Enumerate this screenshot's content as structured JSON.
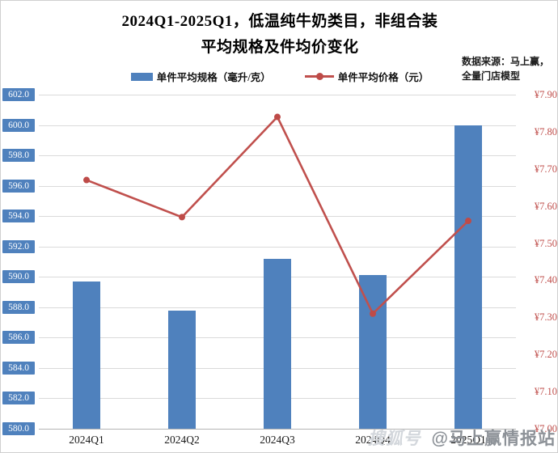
{
  "title": {
    "line1": "2024Q1-2025Q1，低温纯牛奶类目，非组合装",
    "line2": "平均规格及件均价变化"
  },
  "source_note": {
    "line1": "数据来源：马上赢，",
    "line2": "全量门店模型"
  },
  "legend": {
    "bar_label": "单件平均规格（毫升/克）",
    "line_label": "单件平均价格（元）"
  },
  "watermark": {
    "brand": "搜狐号",
    "account": "@马上赢情报站"
  },
  "colors": {
    "bar": "#4f81bd",
    "line": "#c0504d",
    "marker": "#be4b48",
    "left_tick_bg": "#4f81bd",
    "left_tick_text": "#ffffff",
    "right_tick_text": "#c0504d",
    "gridline": "#dadada"
  },
  "chart_data": {
    "type": "bar",
    "subtype": "bar+line combo, dual axis",
    "categories": [
      "2024Q1",
      "2024Q2",
      "2024Q3",
      "2024Q4",
      "2025Q1"
    ],
    "series": [
      {
        "name": "单件平均规格（毫升/克）",
        "type": "bar",
        "axis": "left",
        "color": "#4f81bd",
        "values": [
          589.7,
          587.8,
          591.2,
          590.1,
          600.0
        ]
      },
      {
        "name": "单件平均价格（元）",
        "type": "line",
        "axis": "right",
        "color": "#c0504d",
        "values": [
          7.67,
          7.57,
          7.84,
          7.31,
          7.56
        ]
      }
    ],
    "left_axis": {
      "min": 580.0,
      "max": 602.0,
      "step": 2.0,
      "labels": [
        "602.0",
        "600.0",
        "598.0",
        "596.0",
        "594.0",
        "592.0",
        "590.0",
        "588.0",
        "586.0",
        "584.0",
        "582.0",
        "580.0"
      ]
    },
    "right_axis": {
      "min": 7.0,
      "max": 7.9,
      "step": 0.1,
      "labels": [
        "¥7.90",
        "¥7.80",
        "¥7.70",
        "¥7.60",
        "¥7.50",
        "¥7.40",
        "¥7.30",
        "¥7.20",
        "¥7.10",
        "¥7.00"
      ]
    },
    "grid": true,
    "legend_position": "top",
    "title": "2024Q1-2025Q1，低温纯牛奶类目，非组合装 平均规格及件均价变化"
  }
}
